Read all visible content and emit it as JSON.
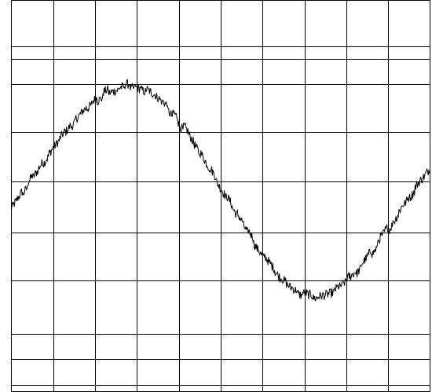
{
  "chart_data": {
    "type": "line",
    "title": "",
    "xlabel": "",
    "ylabel": "",
    "grid": true,
    "xlim": [
      0,
      10
    ],
    "ylim": [
      -1.5,
      1.5
    ],
    "x_gridlines": [
      1,
      2,
      3,
      4,
      5,
      6,
      7,
      8,
      9
    ],
    "y_gridlines": [
      -1.45,
      -1.25,
      -1.06,
      -0.65,
      -0.28,
      0.11,
      0.49,
      0.86,
      1.05,
      1.15
    ],
    "series": [
      {
        "color": "#000000",
        "x": [
          0,
          0.25,
          0.5,
          0.75,
          1,
          1.25,
          1.5,
          1.75,
          2,
          2.25,
          2.5,
          2.75,
          3,
          3.25,
          3.5,
          3.75,
          4,
          4.25,
          4.5,
          4.75,
          5,
          5.25,
          5.5,
          5.75,
          6,
          6.25,
          6.5,
          6.75,
          7,
          7.25,
          7.5,
          7.75,
          8,
          8.25,
          8.5,
          8.75,
          9,
          9.25,
          9.5,
          9.75,
          10
        ],
        "y": [
          -0.1,
          0.02,
          0.14,
          0.25,
          0.37,
          0.47,
          0.57,
          0.66,
          0.73,
          0.79,
          0.82,
          0.84,
          0.84,
          0.8,
          0.75,
          0.67,
          0.57,
          0.46,
          0.33,
          0.2,
          0.07,
          -0.07,
          -0.2,
          -0.33,
          -0.45,
          -0.56,
          -0.65,
          -0.72,
          -0.76,
          -0.77,
          -0.76,
          -0.73,
          -0.66,
          -0.58,
          -0.48,
          -0.37,
          -0.25,
          -0.12,
          0.0,
          0.11,
          0.2
        ],
        "noise_amplitude": 0.045
      }
    ]
  }
}
